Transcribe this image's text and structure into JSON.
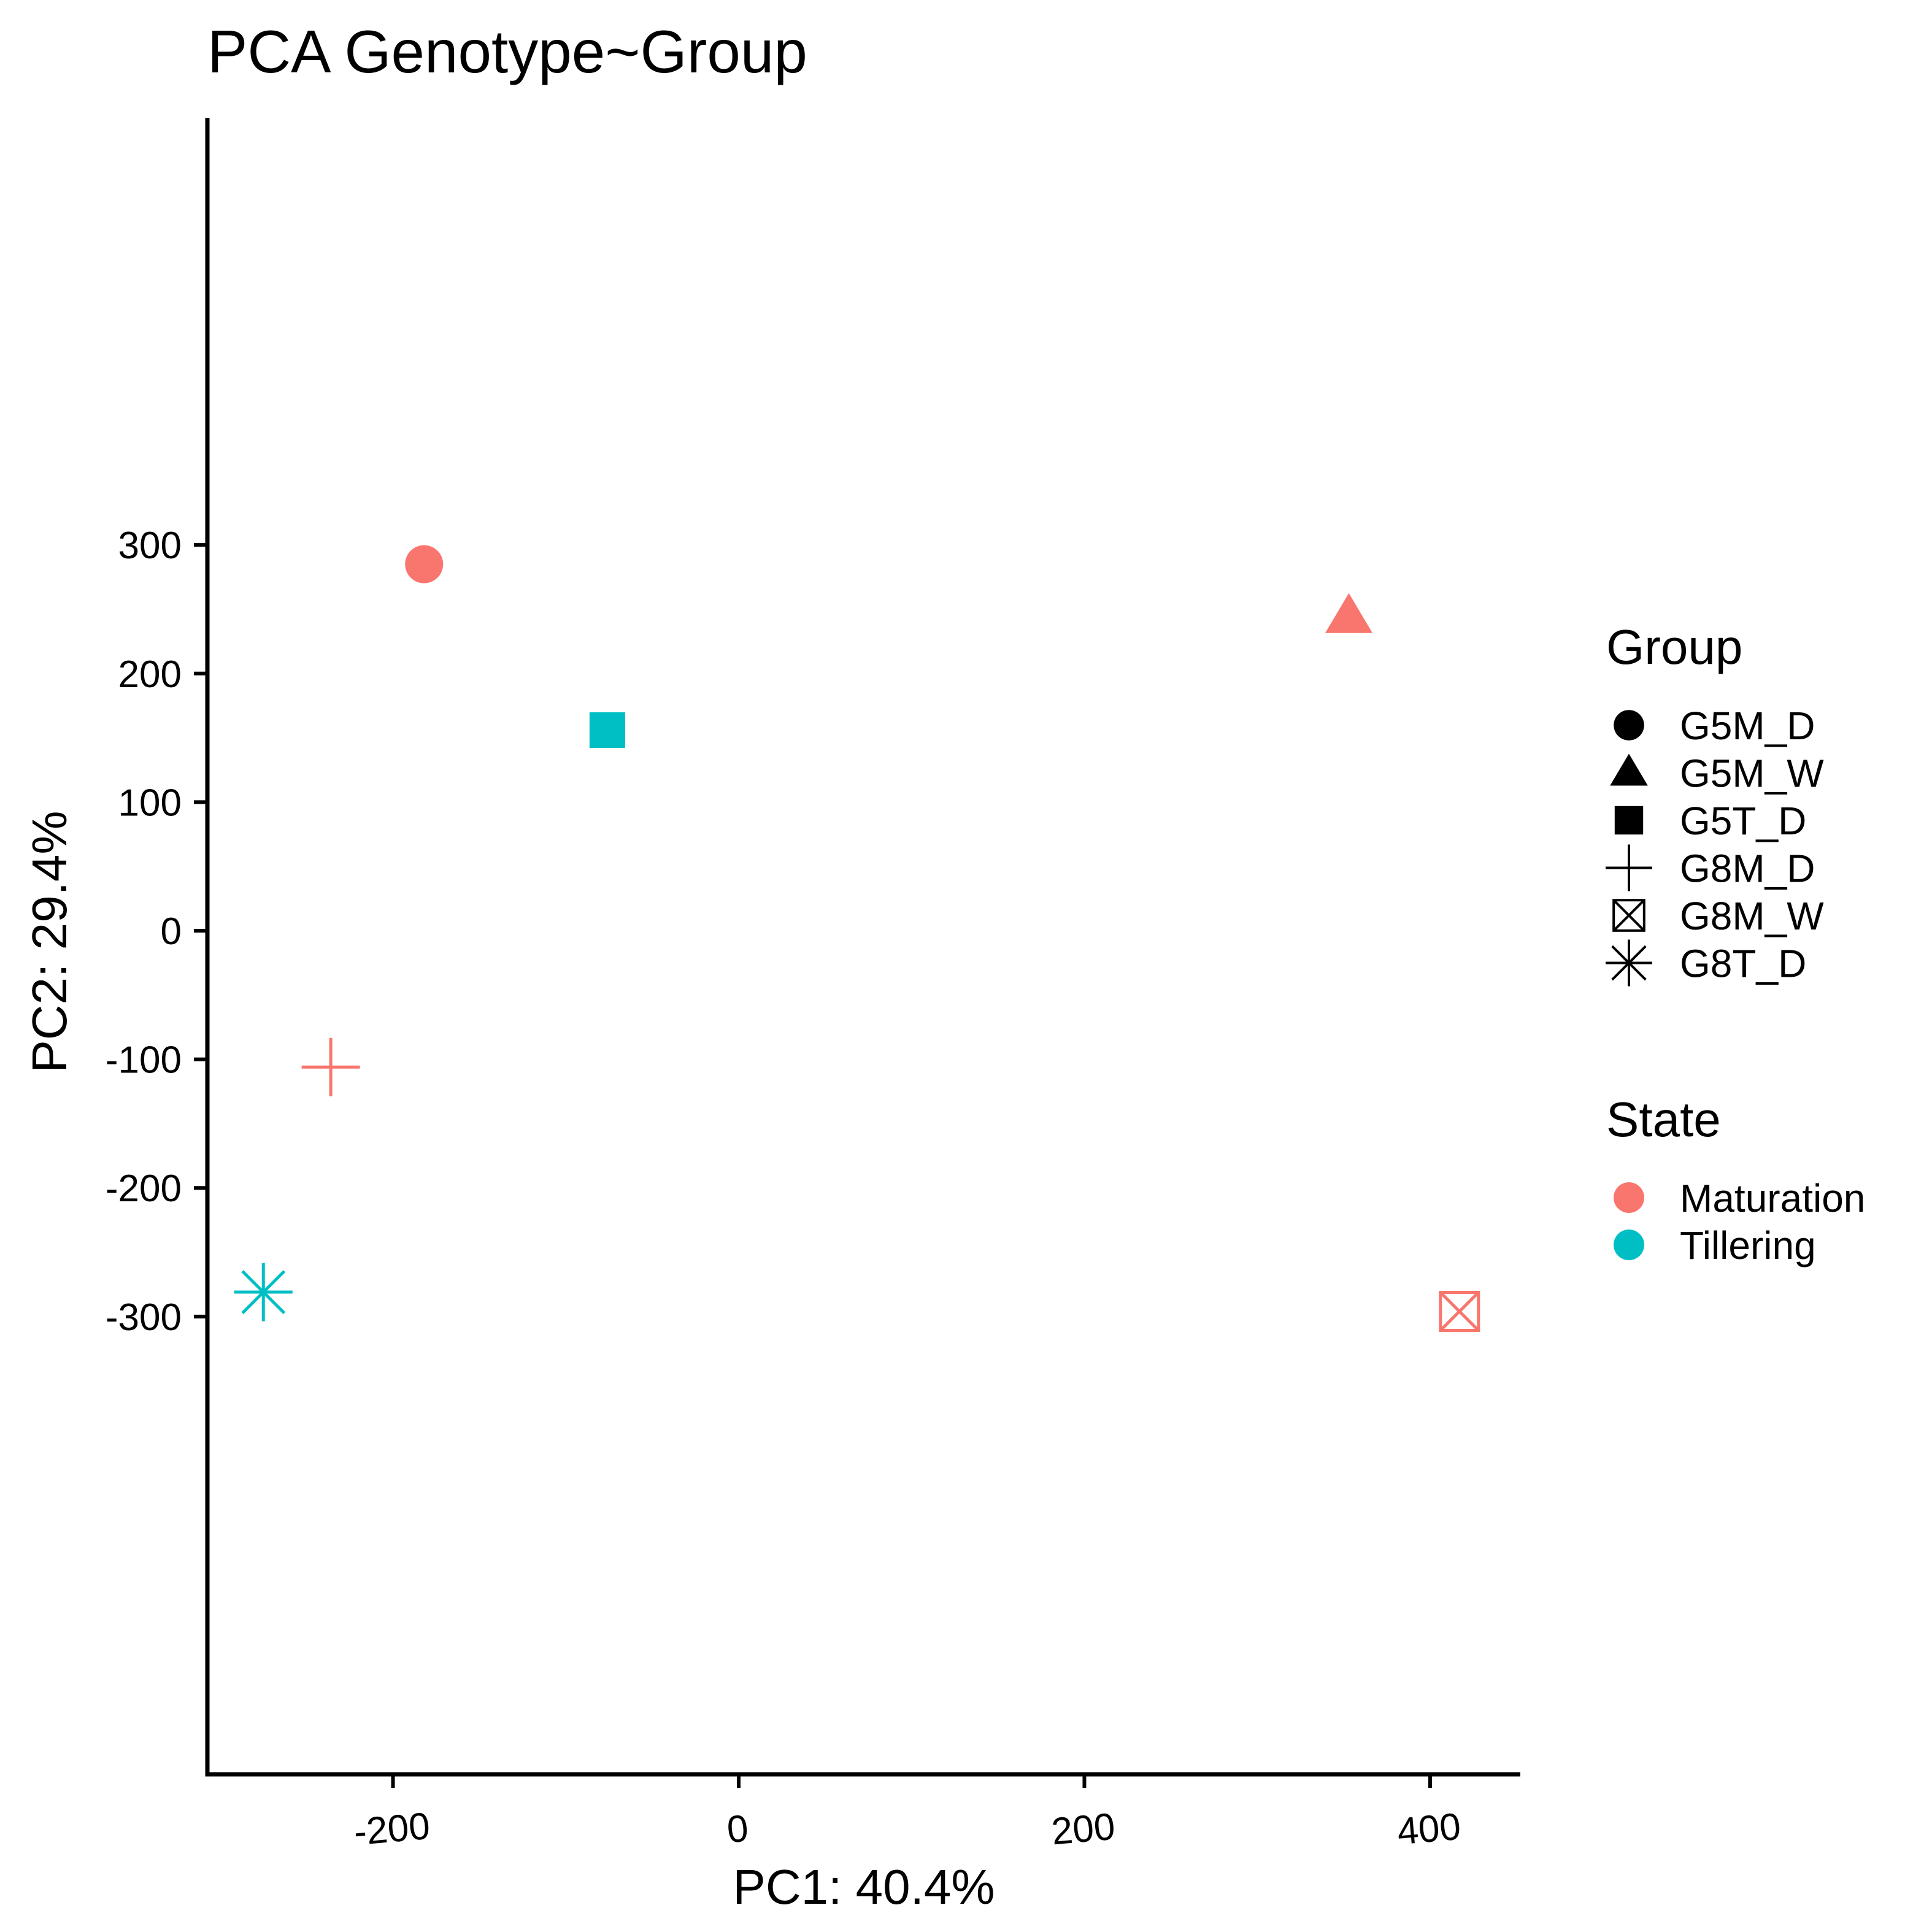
{
  "chart_data": {
    "type": "scatter",
    "title": "PCA Genotype~Group",
    "xlabel": "PC1: 40.4%",
    "ylabel": "PC2: 29.4%",
    "xlim": [
      -310,
      450
    ],
    "ylim": [
      -325,
      315
    ],
    "x_ticks": [
      -200,
      0,
      200,
      400
    ],
    "x_tick_labels": [
      "-200",
      "0",
      "200",
      "400"
    ],
    "y_ticks": [
      300,
      200,
      100,
      0,
      -100,
      -200,
      -300
    ],
    "y_tick_labels": [
      "300",
      "200",
      "100",
      "0",
      "-100",
      "-200",
      "-300"
    ],
    "grid": false,
    "colors": {
      "Maturation": "#F8766D",
      "Tillering": "#00BFC4"
    },
    "points": [
      {
        "group": "G5M_D",
        "state": "Maturation",
        "shape": "circle",
        "x": -182,
        "y": 285
      },
      {
        "group": "G5M_W",
        "state": "Maturation",
        "shape": "triangle",
        "x": 353,
        "y": 244
      },
      {
        "group": "G5T_D",
        "state": "Tillering",
        "shape": "square",
        "x": -76,
        "y": 156
      },
      {
        "group": "G8M_D",
        "state": "Maturation",
        "shape": "plus",
        "x": -236,
        "y": -106
      },
      {
        "group": "G8M_W",
        "state": "Maturation",
        "shape": "square-cross",
        "x": 417,
        "y": -296
      },
      {
        "group": "G8T_D",
        "state": "Tillering",
        "shape": "asterisk",
        "x": -275,
        "y": -281
      }
    ],
    "legend_position": "right",
    "legends": [
      {
        "title": "Group",
        "entries": [
          {
            "label": "G5M_D",
            "shape": "circle"
          },
          {
            "label": "G5M_W",
            "shape": "triangle"
          },
          {
            "label": "G5T_D",
            "shape": "square"
          },
          {
            "label": "G8M_D",
            "shape": "plus"
          },
          {
            "label": "G8M_W",
            "shape": "square-cross"
          },
          {
            "label": "G8T_D",
            "shape": "asterisk"
          }
        ]
      },
      {
        "title": "State",
        "entries": [
          {
            "label": "Maturation",
            "color": "#F8766D"
          },
          {
            "label": "Tillering",
            "color": "#00BFC4"
          }
        ]
      }
    ]
  }
}
